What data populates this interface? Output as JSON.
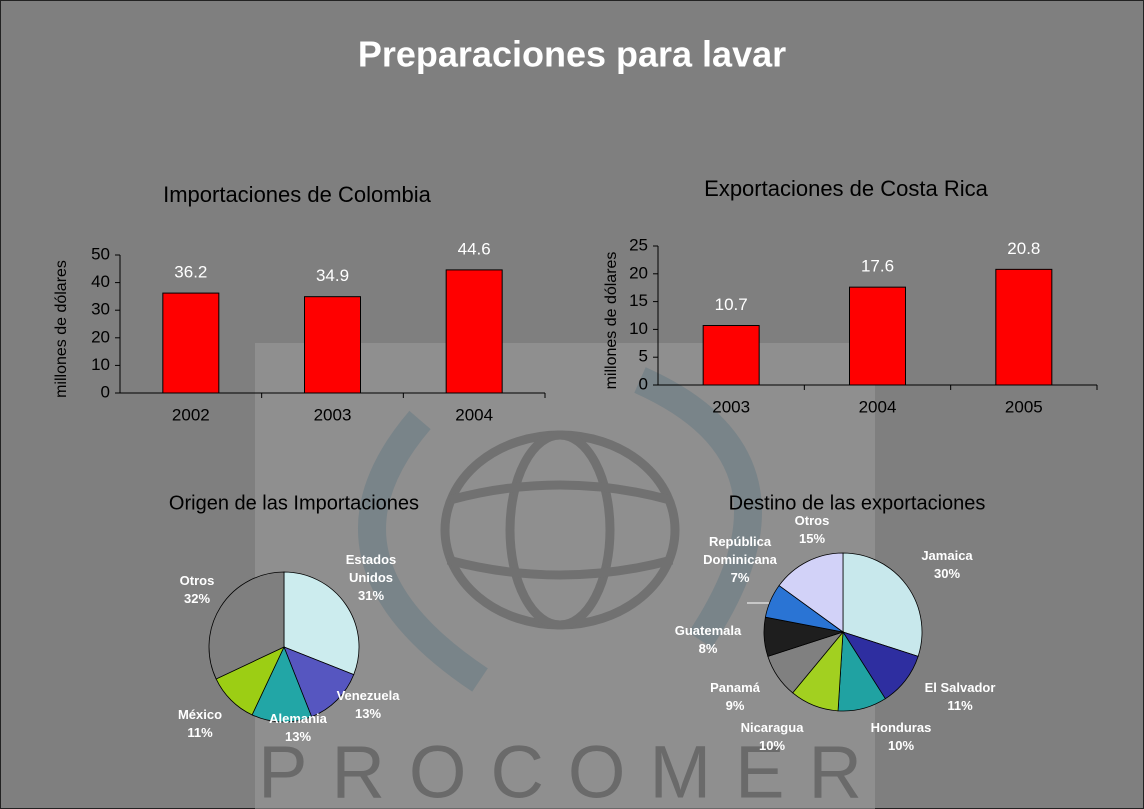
{
  "title": "Preparaciones para lavar",
  "watermark": "PROCOMER",
  "chart_data": [
    {
      "type": "bar",
      "title": "Importaciones de Colombia",
      "ylabel": "millones de dólares",
      "categories": [
        "2002",
        "2003",
        "2004"
      ],
      "values": [
        36.2,
        34.9,
        44.6
      ],
      "color": "#ff0000",
      "ylim": [
        0,
        50
      ],
      "yticks": [
        0,
        10,
        20,
        30,
        40,
        50
      ]
    },
    {
      "type": "bar",
      "title": "Exportaciones de Costa Rica",
      "ylabel": "millones de dólares",
      "categories": [
        "2003",
        "2004",
        "2005"
      ],
      "values": [
        10.7,
        17.6,
        20.8
      ],
      "color": "#ff0000",
      "ylim": [
        0,
        25
      ],
      "yticks": [
        0,
        5,
        10,
        15,
        20,
        25
      ]
    },
    {
      "type": "pie",
      "title": "Origen de las Importaciones",
      "categories": [
        "Estados Unidos",
        "Venezuela",
        "Alemania",
        "México",
        "Otros"
      ],
      "values": [
        31,
        13,
        13,
        11,
        32
      ],
      "value_labels": [
        "31%",
        "13%",
        "13%",
        "11%",
        "32%"
      ],
      "colors": [
        "#ccecee",
        "#5656c0",
        "#22a6a6",
        "#9cce14",
        "#7f7f7f"
      ]
    },
    {
      "type": "pie",
      "title": "Destino de las exportaciones",
      "categories": [
        "Jamaica",
        "El Salvador",
        "Honduras",
        "Nicaragua",
        "Panamá",
        "Guatemala",
        "República Dominicana",
        "Otros"
      ],
      "values": [
        30,
        11,
        10,
        10,
        9,
        8,
        7,
        15
      ],
      "value_labels": [
        "30%",
        "11%",
        "10%",
        "10%",
        "9%",
        "8%",
        "7%",
        "15%"
      ],
      "colors": [
        "#c8e8ec",
        "#2e2ea0",
        "#20a2a2",
        "#a2d020",
        "#808080",
        "#1e1e1e",
        "#2a74d4",
        "#d2d2f8"
      ]
    }
  ]
}
